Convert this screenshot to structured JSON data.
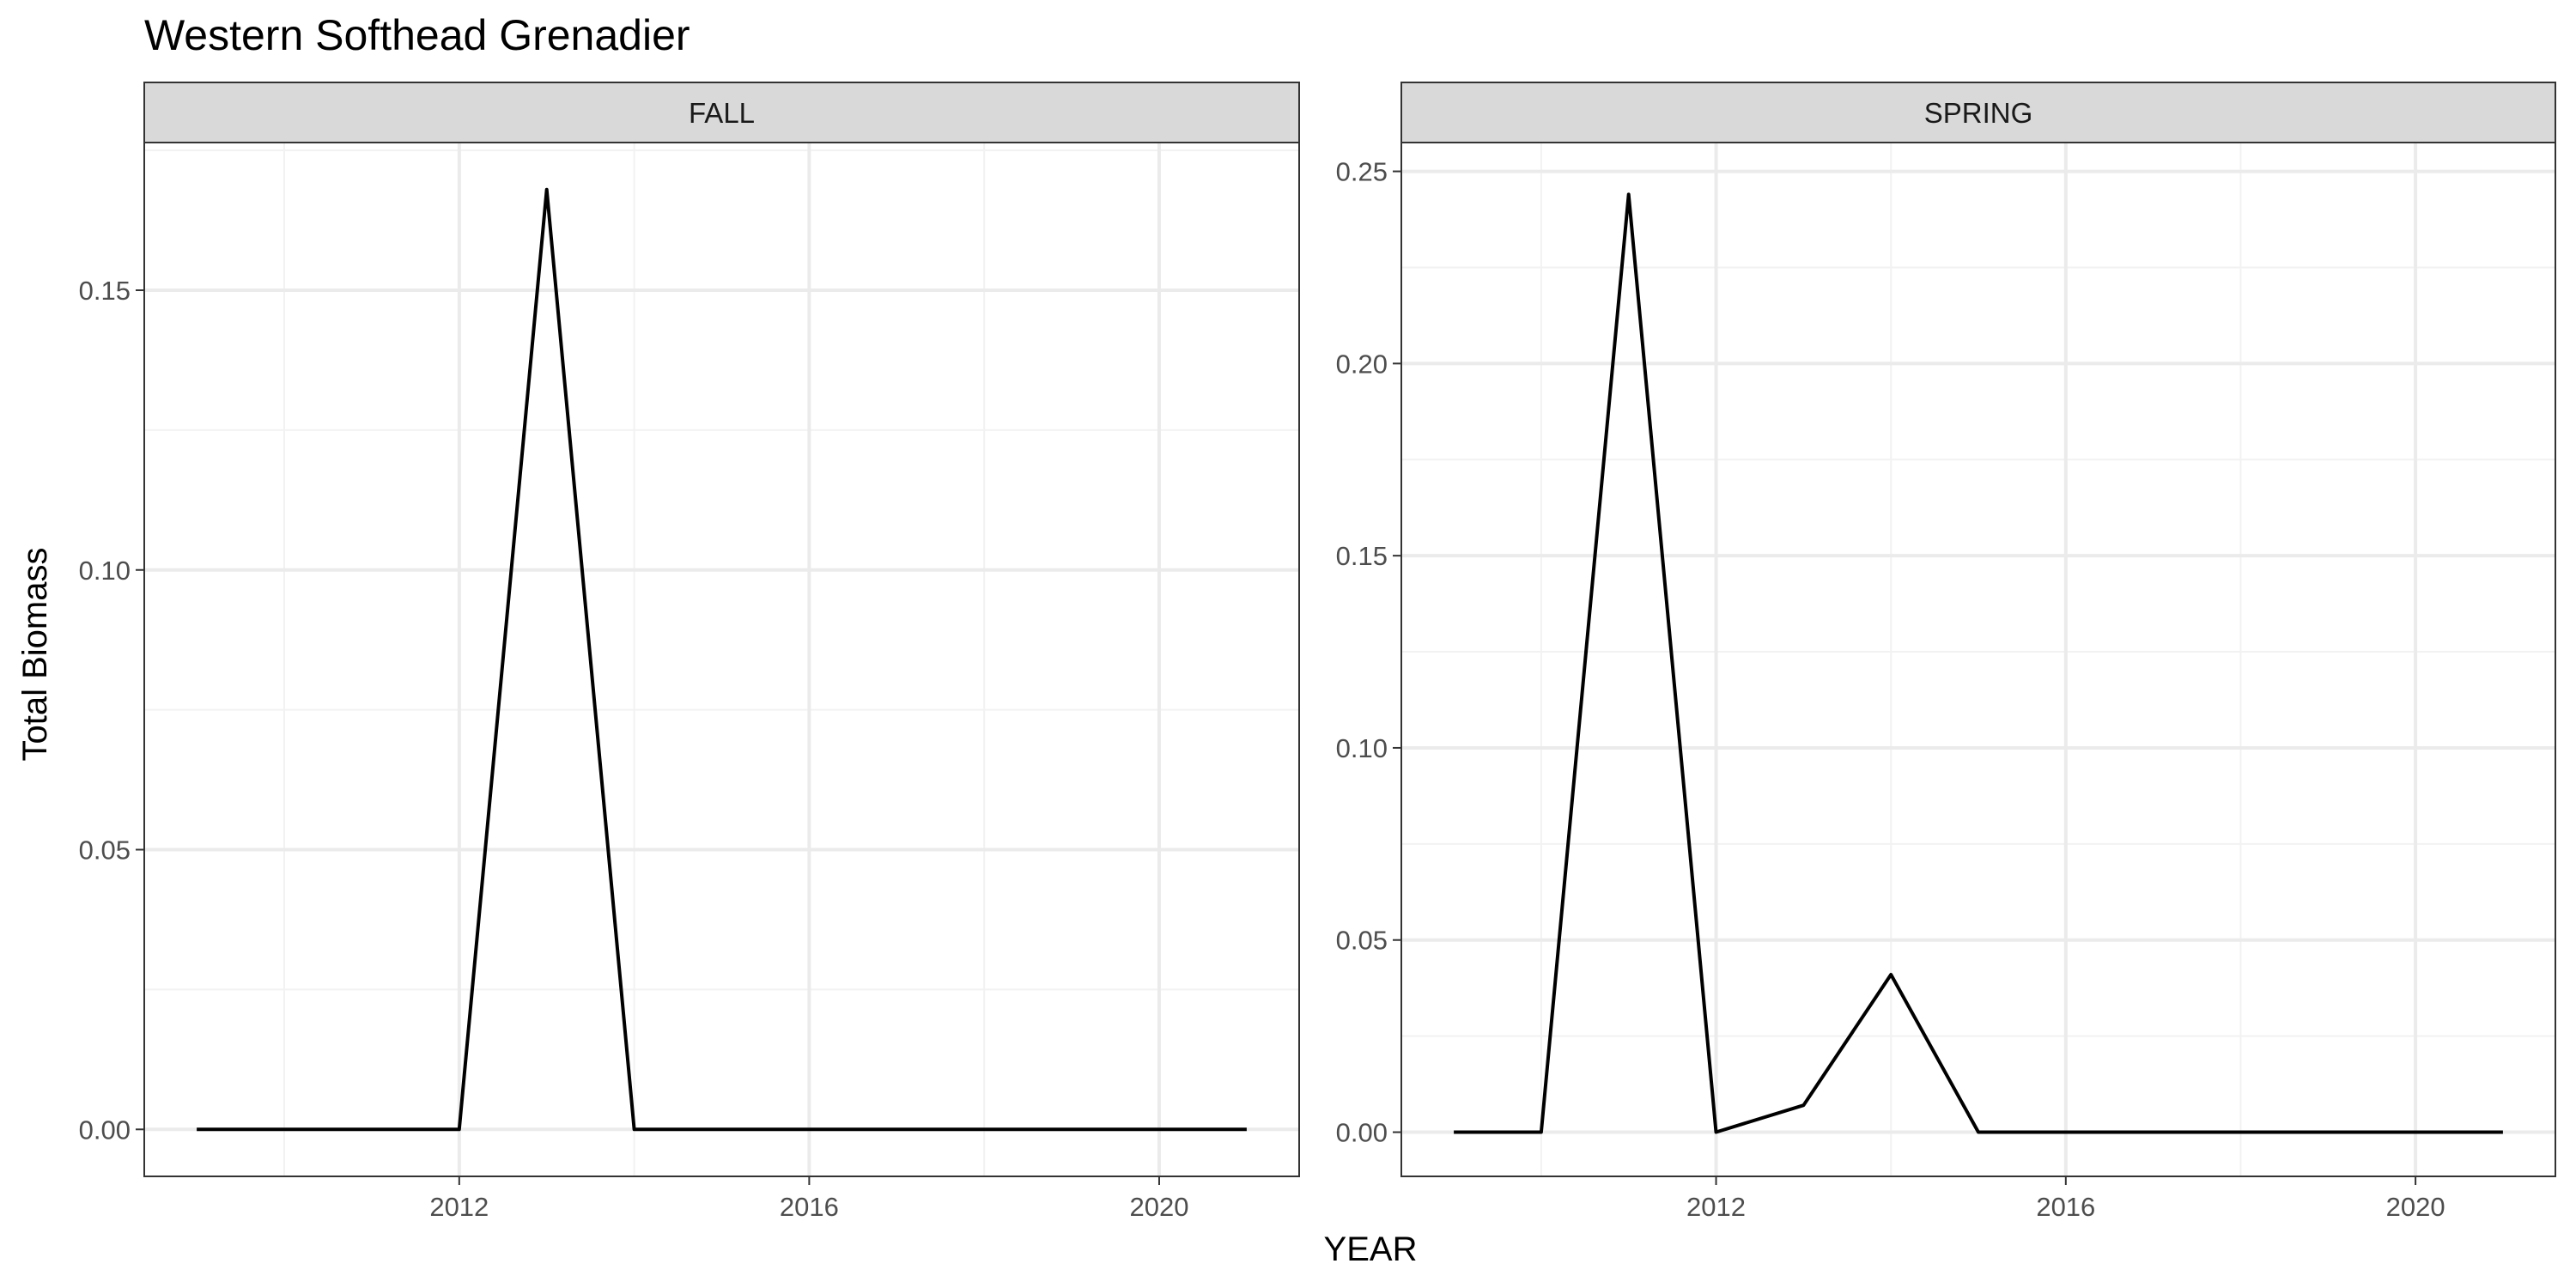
{
  "figure": {
    "title": "Western Softhead Grenadier",
    "xlabel": "YEAR",
    "ylabel": "Total Biomass"
  },
  "chart_data": [
    {
      "type": "line",
      "panel": "FALL",
      "title": "Western Softhead Grenadier",
      "xlabel": "YEAR",
      "ylabel": "Total Biomass",
      "xlim": [
        2008.4,
        2021.6
      ],
      "ylim": [
        -0.0084,
        0.1764
      ],
      "xticks": [
        2012,
        2016,
        2020
      ],
      "xtick_labels": [
        "2012",
        "2016",
        "2020"
      ],
      "yticks": [
        0.0,
        0.05,
        0.1,
        0.15
      ],
      "ytick_labels": [
        "0.00",
        "0.05",
        "0.10",
        "0.15"
      ],
      "grid": true,
      "x": [
        2009,
        2010,
        2011,
        2012,
        2013,
        2014,
        2015,
        2016,
        2017,
        2018,
        2019,
        2020,
        2021
      ],
      "y": [
        0,
        0,
        0,
        0,
        0.168,
        0,
        0,
        0,
        0,
        0,
        0,
        0,
        0
      ],
      "color": "#000000"
    },
    {
      "type": "line",
      "panel": "SPRING",
      "title": "Western Softhead Grenadier",
      "xlabel": "YEAR",
      "ylabel": "Total Biomass",
      "xlim": [
        2008.4,
        2021.6
      ],
      "ylim": [
        -0.0115,
        0.2575
      ],
      "xticks": [
        2012,
        2016,
        2020
      ],
      "xtick_labels": [
        "2012",
        "2016",
        "2020"
      ],
      "yticks": [
        0.0,
        0.05,
        0.1,
        0.15,
        0.2,
        0.25
      ],
      "ytick_labels": [
        "0.00",
        "0.05",
        "0.10",
        "0.15",
        "0.20",
        "0.25"
      ],
      "grid": true,
      "x": [
        2009,
        2010,
        2011,
        2012,
        2013,
        2014,
        2015,
        2016,
        2017,
        2018,
        2019,
        2020,
        2021
      ],
      "y": [
        0,
        0,
        0.244,
        0,
        0.007,
        0.041,
        0,
        0,
        0,
        0,
        0,
        0,
        0
      ],
      "color": "#000000"
    }
  ]
}
